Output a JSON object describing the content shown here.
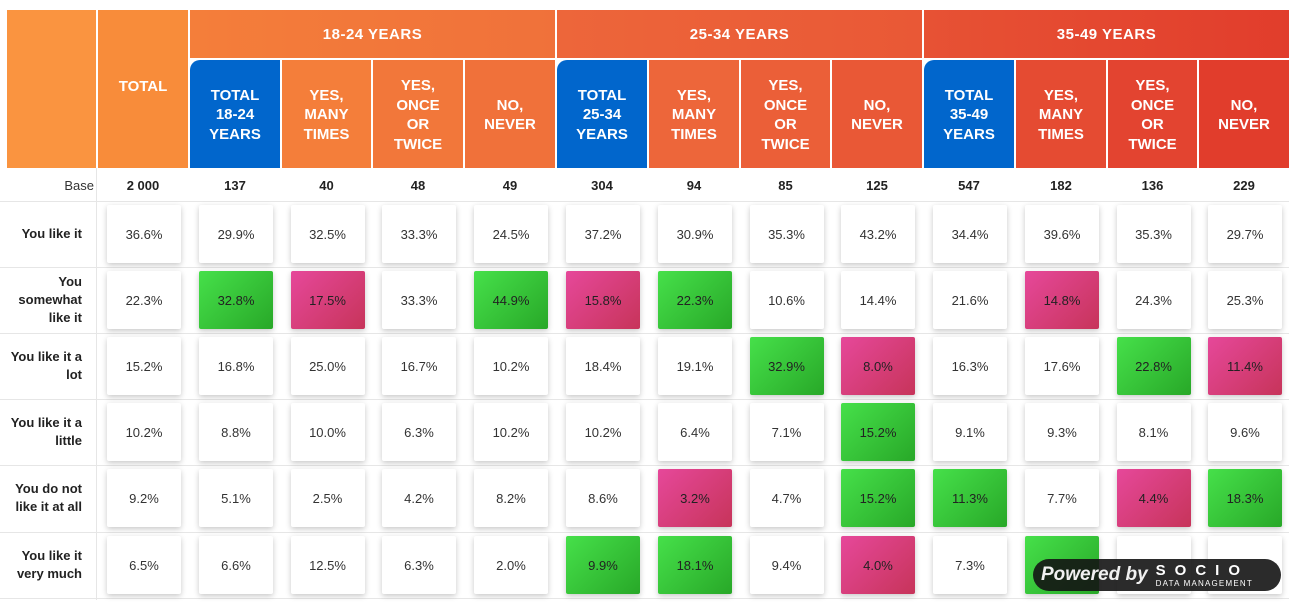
{
  "chart_data": {
    "type": "table",
    "groups": [
      "18-24 YEARS",
      "25-34 YEARS",
      "35-49 YEARS"
    ],
    "columns": [
      "TOTAL",
      "TOTAL\n18-24\nYEARS",
      "YES,\nMANY\nTIMES",
      "YES,\nONCE\nOR\nTWICE",
      "NO,\nNEVER",
      "TOTAL\n25-34\nYEARS",
      "YES,\nMANY\nTIMES",
      "YES,\nONCE\nOR\nTWICE",
      "NO,\nNEVER",
      "TOTAL\n35-49\nYEARS",
      "YES,\nMANY\nTIMES",
      "YES,\nONCE\nOR\nTWICE",
      "NO,\nNEVER"
    ],
    "base_label": "Base",
    "base": [
      "2 000",
      "137",
      "40",
      "48",
      "49",
      "304",
      "94",
      "85",
      "125",
      "547",
      "182",
      "136",
      "229"
    ],
    "rows": [
      {
        "label": "You like it",
        "values": [
          "36.6%",
          "29.9%",
          "32.5%",
          "33.3%",
          "24.5%",
          "37.2%",
          "30.9%",
          "35.3%",
          "43.2%",
          "34.4%",
          "39.6%",
          "35.3%",
          "29.7%"
        ],
        "flags": [
          "",
          "",
          "",
          "",
          "",
          "",
          "",
          "",
          "",
          "",
          "",
          "",
          ""
        ]
      },
      {
        "label": "You\nsomewhat\nlike it",
        "values": [
          "22.3%",
          "32.8%",
          "17.5%",
          "33.3%",
          "44.9%",
          "15.8%",
          "22.3%",
          "10.6%",
          "14.4%",
          "21.6%",
          "14.8%",
          "24.3%",
          "25.3%"
        ],
        "flags": [
          "",
          "hi",
          "lo",
          "",
          "hi",
          "lo",
          "hi",
          "",
          "",
          "",
          "lo",
          "",
          ""
        ]
      },
      {
        "label": "You like it a\nlot",
        "values": [
          "15.2%",
          "16.8%",
          "25.0%",
          "16.7%",
          "10.2%",
          "18.4%",
          "19.1%",
          "32.9%",
          "8.0%",
          "16.3%",
          "17.6%",
          "22.8%",
          "11.4%"
        ],
        "flags": [
          "",
          "",
          "",
          "",
          "",
          "",
          "",
          "hi",
          "lo",
          "",
          "",
          "hi",
          "lo"
        ]
      },
      {
        "label": "You like it a\nlittle",
        "values": [
          "10.2%",
          "8.8%",
          "10.0%",
          "6.3%",
          "10.2%",
          "10.2%",
          "6.4%",
          "7.1%",
          "15.2%",
          "9.1%",
          "9.3%",
          "8.1%",
          "9.6%"
        ],
        "flags": [
          "",
          "",
          "",
          "",
          "",
          "",
          "",
          "",
          "hi",
          "",
          "",
          "",
          ""
        ]
      },
      {
        "label": "You do not\nlike it at all",
        "values": [
          "9.2%",
          "5.1%",
          "2.5%",
          "4.2%",
          "8.2%",
          "8.6%",
          "3.2%",
          "4.7%",
          "15.2%",
          "11.3%",
          "7.7%",
          "4.4%",
          "18.3%"
        ],
        "flags": [
          "",
          "",
          "",
          "",
          "",
          "",
          "lo",
          "",
          "hi",
          "hi",
          "",
          "lo",
          "hi"
        ]
      },
      {
        "label": "You like it\nvery much",
        "values": [
          "6.5%",
          "6.6%",
          "12.5%",
          "6.3%",
          "2.0%",
          "9.9%",
          "18.1%",
          "9.4%",
          "4.0%",
          "7.3%",
          "",
          "",
          ""
        ],
        "flags": [
          "",
          "",
          "",
          "",
          "",
          "hi",
          "hi",
          "",
          "lo",
          "",
          "hi",
          "",
          ""
        ]
      }
    ]
  },
  "watermark": {
    "powered": "Powered by",
    "brand": "SOCIO",
    "sub": "DATA MANAGEMENT"
  },
  "colors": {
    "total_header": "#0166cc",
    "highlight_high": "#3cc83c",
    "highlight_low": "#dc3c7e"
  }
}
